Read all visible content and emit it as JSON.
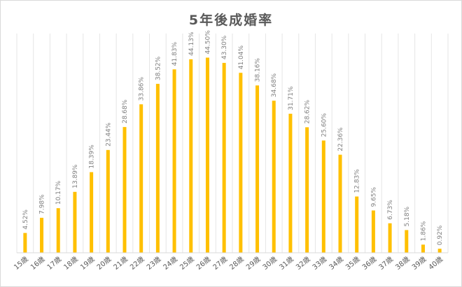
{
  "chart_data": {
    "type": "bar",
    "title": "5年後成婚率",
    "categories": [
      "15歳",
      "16歳",
      "17歳",
      "18歳",
      "19歳",
      "20歳",
      "21歳",
      "22歳",
      "23歳",
      "24歳",
      "25歳",
      "26歳",
      "27歳",
      "28歳",
      "29歳",
      "30歳",
      "31歳",
      "32歳",
      "33歳",
      "34歳",
      "35歳",
      "36歳",
      "37歳",
      "38歳",
      "39歳",
      "40歳"
    ],
    "values": [
      4.52,
      7.98,
      10.17,
      13.89,
      18.39,
      23.44,
      28.68,
      33.86,
      38.52,
      41.83,
      44.13,
      44.5,
      43.3,
      41.04,
      38.16,
      34.68,
      31.71,
      28.62,
      25.6,
      22.36,
      12.83,
      9.65,
      6.73,
      5.18,
      1.86,
      0.92
    ],
    "data_labels": [
      "4.52%",
      "7.98%",
      "10.17%",
      "13.89%",
      "18.39%",
      "23.44%",
      "28.68%",
      "33.86%",
      "38.52%",
      "41.83%",
      "44.13%",
      "44.50%",
      "43.30%",
      "41.04%",
      "38.16%",
      "34.68%",
      "31.71%",
      "28.62%",
      "25.60%",
      "22.36%",
      "12.83%",
      "9.65%",
      "6.73%",
      "5.18%",
      "1.86%",
      "0.92%"
    ],
    "ylim": [
      0,
      50
    ],
    "grid": "vertical",
    "legend": "none",
    "bar_color": "#FFC000",
    "grid_color": "#e6e6e6",
    "axis_color": "#d9d9d9"
  }
}
